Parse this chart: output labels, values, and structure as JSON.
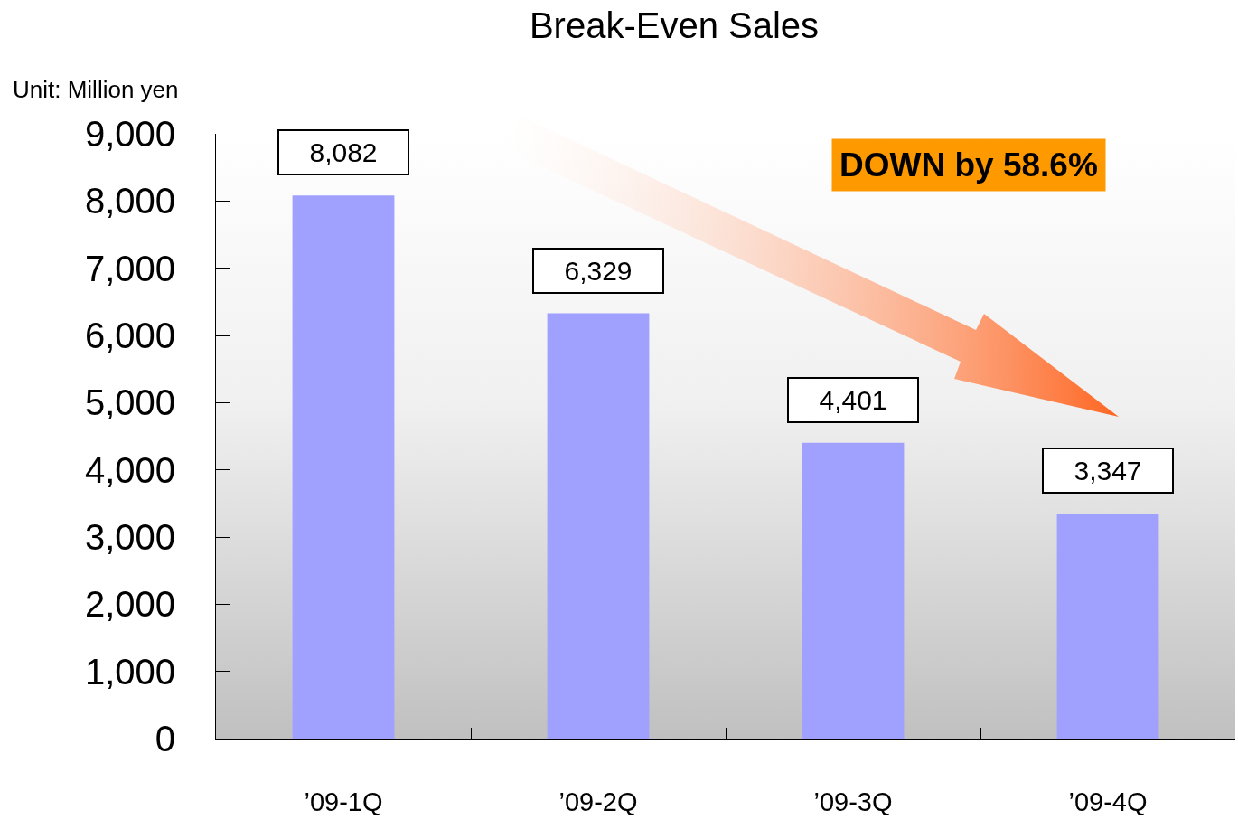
{
  "chart_data": {
    "type": "bar",
    "title": "Break-Even Sales",
    "ylabel": "Unit: Million yen",
    "categories": [
      "’09-1Q",
      "’09-2Q",
      "’09-3Q",
      "’09-4Q"
    ],
    "values": [
      8082,
      6329,
      4401,
      3347
    ],
    "value_labels": [
      "8,082",
      "6,329",
      "4,401",
      "3,347"
    ],
    "color": "#a0a0ff",
    "ylim": [
      0,
      9000
    ],
    "yticks": [
      0,
      {
        "value": 1000,
        "label": "1,000"
      },
      {
        "value": 2000,
        "label": "2,000"
      },
      {
        "value": 3000,
        "label": "3,000"
      },
      {
        "value": 4000,
        "label": "4,000"
      },
      {
        "value": 5000,
        "label": "5,000"
      },
      {
        "value": 6000,
        "label": "6,000"
      },
      {
        "value": 7000,
        "label": "7,000"
      },
      {
        "value": 8000,
        "label": "8,000"
      },
      {
        "value": 9000,
        "label": "9,000"
      }
    ],
    "annotations": [
      "DOWN by 58.6%"
    ]
  }
}
